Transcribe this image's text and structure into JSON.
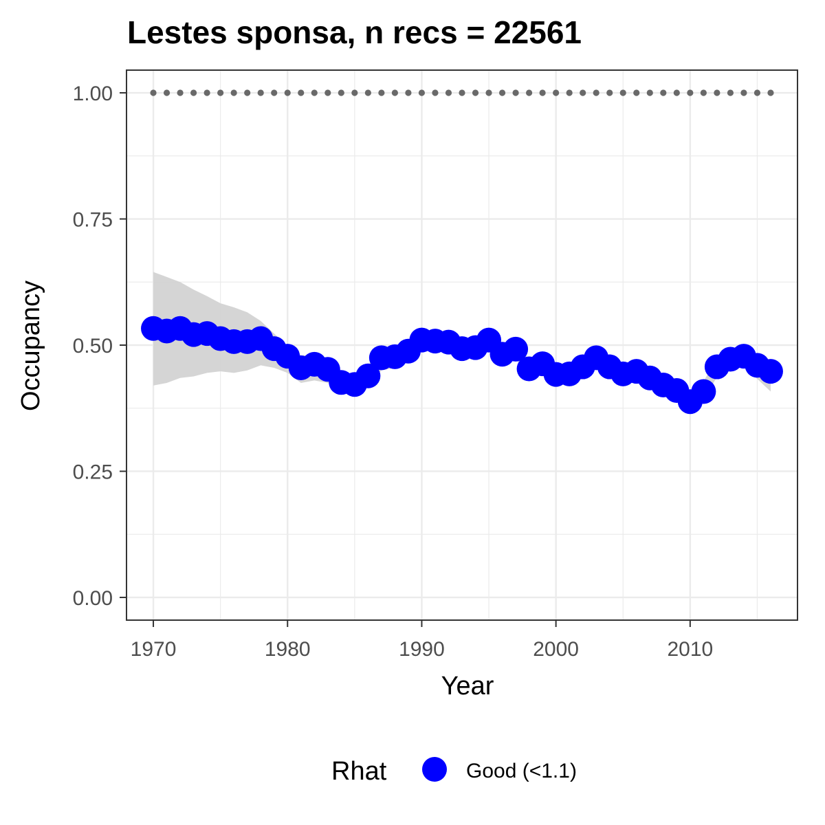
{
  "chart_data": {
    "type": "line",
    "title": "Lestes sponsa, n recs = 22561",
    "xlabel": "Year",
    "ylabel": "Occupancy",
    "xlim": [
      1968,
      2018
    ],
    "ylim": [
      -0.045,
      1.045
    ],
    "x_ticks": [
      1970,
      1980,
      1990,
      2000,
      2010
    ],
    "x_tick_labels": [
      "1970",
      "1980",
      "1990",
      "2000",
      "2010"
    ],
    "y_ticks": [
      0.0,
      0.25,
      0.5,
      0.75,
      1.0
    ],
    "y_tick_labels": [
      "0.00",
      "0.25",
      "0.50",
      "0.75",
      "1.00"
    ],
    "grid": true,
    "legend": {
      "title": "Rhat",
      "position": "bottom",
      "entries": [
        {
          "label": "Good (<1.1)",
          "color": "#0000ff"
        }
      ]
    },
    "colors": {
      "points": "#0000ff",
      "ribbon": "#d3d3d3",
      "reference_dots": "#696969",
      "grid": "#ebebeb",
      "panel_border": "#333333"
    },
    "x": [
      1970,
      1971,
      1972,
      1973,
      1974,
      1975,
      1976,
      1977,
      1978,
      1979,
      1980,
      1981,
      1982,
      1983,
      1984,
      1985,
      1986,
      1987,
      1988,
      1989,
      1990,
      1991,
      1992,
      1993,
      1994,
      1995,
      1996,
      1997,
      1998,
      1999,
      2000,
      2001,
      2002,
      2003,
      2004,
      2005,
      2006,
      2007,
      2008,
      2009,
      2010,
      2011,
      2012,
      2013,
      2014,
      2015,
      2016
    ],
    "series": [
      {
        "values": [
          0.533,
          0.528,
          0.533,
          0.521,
          0.523,
          0.513,
          0.507,
          0.507,
          0.513,
          0.493,
          0.478,
          0.455,
          0.462,
          0.452,
          0.426,
          0.422,
          0.439,
          0.475,
          0.477,
          0.488,
          0.51,
          0.508,
          0.506,
          0.493,
          0.495,
          0.51,
          0.482,
          0.492,
          0.453,
          0.463,
          0.442,
          0.443,
          0.457,
          0.475,
          0.457,
          0.443,
          0.448,
          0.435,
          0.421,
          0.41,
          0.388,
          0.408,
          0.457,
          0.472,
          0.478,
          0.46,
          0.448
        ]
      }
    ],
    "ribbon": {
      "upper": [
        0.645,
        0.635,
        0.625,
        0.61,
        0.597,
        0.583,
        0.575,
        0.565,
        0.548,
        0.523,
        0.498,
        0.48,
        0.48,
        0.47,
        0.45,
        0.44,
        0.46,
        0.495,
        0.495,
        0.505,
        0.525,
        0.522,
        0.518,
        0.508,
        0.51,
        0.525,
        0.5,
        0.507,
        0.47,
        0.48,
        0.46,
        0.46,
        0.473,
        0.492,
        0.473,
        0.46,
        0.465,
        0.452,
        0.438,
        0.428,
        0.405,
        0.428,
        0.475,
        0.49,
        0.495,
        0.48,
        0.47
      ],
      "lower": [
        0.42,
        0.425,
        0.435,
        0.438,
        0.445,
        0.448,
        0.445,
        0.45,
        0.46,
        0.455,
        0.445,
        0.425,
        0.43,
        0.425,
        0.405,
        0.4,
        0.418,
        0.45,
        0.455,
        0.47,
        0.49,
        0.49,
        0.488,
        0.475,
        0.478,
        0.493,
        0.463,
        0.474,
        0.435,
        0.445,
        0.425,
        0.425,
        0.44,
        0.458,
        0.44,
        0.425,
        0.43,
        0.418,
        0.403,
        0.39,
        0.368,
        0.388,
        0.438,
        0.455,
        0.458,
        0.433,
        0.408
      ]
    },
    "reference_line": {
      "y": 1.0,
      "style": "dotted"
    }
  }
}
